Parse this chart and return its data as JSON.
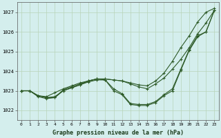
{
  "title": "Graphe pression niveau de la mer (hPa)",
  "background_color": "#d4eeed",
  "grid_color": "#b8d4b8",
  "line_color": "#2d5a27",
  "xlim": [
    -0.5,
    23.5
  ],
  "ylim": [
    1021.5,
    1027.5
  ],
  "yticks": [
    1022,
    1023,
    1024,
    1025,
    1026,
    1027
  ],
  "xticks": [
    0,
    1,
    2,
    3,
    4,
    5,
    6,
    7,
    8,
    9,
    10,
    11,
    12,
    13,
    14,
    15,
    16,
    17,
    18,
    19,
    20,
    21,
    22,
    23
  ],
  "lines": [
    {
      "x": [
        0,
        1,
        2,
        3,
        4,
        5,
        6,
        7,
        8,
        9,
        10,
        11,
        12,
        13,
        14,
        15,
        16,
        17,
        18,
        19,
        20,
        21,
        22,
        23
      ],
      "y": [
        1023.0,
        1023.0,
        1022.75,
        1022.65,
        1022.65,
        1023.05,
        1023.2,
        1023.35,
        1023.5,
        1023.6,
        1023.6,
        1023.55,
        1023.5,
        1023.4,
        1023.3,
        1023.25,
        1023.5,
        1023.9,
        1024.5,
        1025.2,
        1025.8,
        1026.5,
        1027.0,
        1027.2
      ]
    },
    {
      "x": [
        0,
        1,
        2,
        3,
        4,
        5,
        6,
        7,
        8,
        9,
        10,
        11,
        12,
        13,
        14,
        15,
        16,
        17,
        18,
        19,
        20,
        21,
        22,
        23
      ],
      "y": [
        1023.0,
        1023.0,
        1022.75,
        1022.7,
        1022.9,
        1023.1,
        1023.25,
        1023.4,
        1023.5,
        1023.6,
        1023.6,
        1023.55,
        1023.5,
        1023.35,
        1023.2,
        1023.1,
        1023.35,
        1023.65,
        1024.1,
        1024.6,
        1025.2,
        1025.9,
        1026.45,
        1027.1
      ]
    },
    {
      "x": [
        0,
        1,
        2,
        3,
        4,
        5,
        6,
        7,
        8,
        9,
        10,
        11,
        12,
        13,
        14,
        15,
        16,
        17,
        18,
        19,
        20,
        21,
        22,
        23
      ],
      "y": [
        1023.0,
        1023.0,
        1022.75,
        1022.65,
        1022.7,
        1023.0,
        1023.15,
        1023.3,
        1023.5,
        1023.6,
        1023.55,
        1023.1,
        1022.85,
        1022.35,
        1022.3,
        1022.3,
        1022.45,
        1022.8,
        1023.1,
        1024.1,
        1025.1,
        1025.8,
        1026.0,
        1027.1
      ]
    },
    {
      "x": [
        0,
        1,
        2,
        3,
        4,
        5,
        6,
        7,
        8,
        9,
        10,
        11,
        12,
        13,
        14,
        15,
        16,
        17,
        18,
        19,
        20,
        21,
        22,
        23
      ],
      "y": [
        1023.0,
        1023.0,
        1022.7,
        1022.6,
        1022.65,
        1023.0,
        1023.15,
        1023.3,
        1023.45,
        1023.55,
        1023.55,
        1023.0,
        1022.8,
        1022.3,
        1022.25,
        1022.25,
        1022.4,
        1022.75,
        1023.0,
        1024.05,
        1025.05,
        1025.75,
        1026.0,
        1027.1
      ]
    }
  ]
}
